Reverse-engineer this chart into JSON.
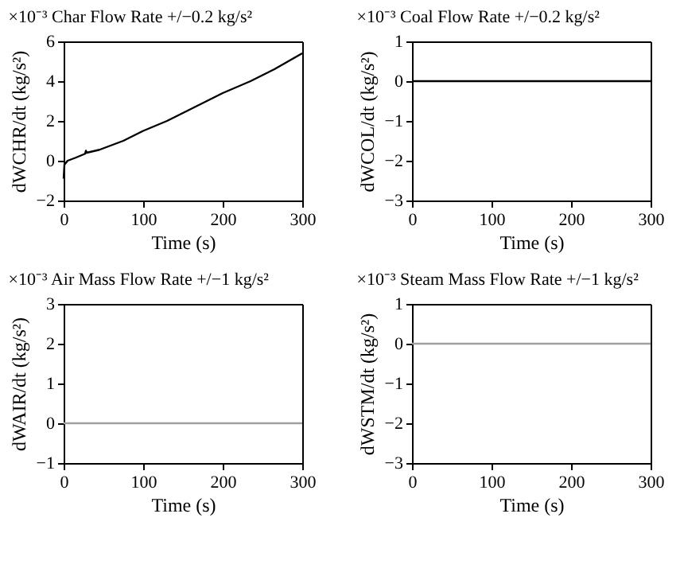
{
  "chart_data": [
    {
      "type": "line",
      "title": "×10⁻³  Char Flow Rate +/−0.2 kg/s²",
      "xlabel": "Time (s)",
      "ylabel": "dWCHR/dt (kg/s²)",
      "xlim": [
        0,
        300
      ],
      "xticks": [
        0,
        100,
        200,
        300
      ],
      "ylim": [
        -2,
        6
      ],
      "yticks": [
        -2,
        0,
        2,
        4,
        6
      ],
      "grid": false,
      "series": [
        {
          "color": "#000000",
          "x": [
            0,
            1,
            5,
            15,
            27,
            28,
            29,
            45,
            55,
            75,
            100,
            130,
            155,
            180,
            200,
            235,
            265,
            300
          ],
          "values": [
            -0.9,
            -0.2,
            0,
            0.15,
            0.35,
            0.5,
            0.4,
            0.55,
            0.7,
            1.0,
            1.5,
            2.0,
            2.5,
            3.0,
            3.4,
            4.0,
            4.6,
            5.4
          ]
        }
      ]
    },
    {
      "type": "line",
      "title": "×10⁻³  Coal Flow Rate +/−0.2 kg/s²",
      "xlabel": "Time (s)",
      "ylabel": "dWCOL/dt (kg/s²)",
      "xlim": [
        0,
        300
      ],
      "xticks": [
        0,
        100,
        200,
        300
      ],
      "ylim": [
        -3,
        1
      ],
      "yticks": [
        -3,
        -2,
        -1,
        0,
        1
      ],
      "grid": false,
      "series": [
        {
          "color": "#000000",
          "x": [
            0,
            300
          ],
          "values": [
            0,
            0
          ]
        }
      ]
    },
    {
      "type": "line",
      "title": "×10⁻³  Air Mass Flow Rate +/−1 kg/s²",
      "xlabel": "Time (s)",
      "ylabel": "dWAIR/dt (kg/s²)",
      "xlim": [
        0,
        300
      ],
      "xticks": [
        0,
        100,
        200,
        300
      ],
      "ylim": [
        -1,
        3
      ],
      "yticks": [
        -1,
        0,
        1,
        2,
        3
      ],
      "grid": false,
      "series": [
        {
          "color": "#a0a0a0",
          "x": [
            0,
            300
          ],
          "values": [
            0,
            0
          ]
        }
      ]
    },
    {
      "type": "line",
      "title": "×10⁻³  Steam Mass Flow Rate +/−1 kg/s²",
      "xlabel": "Time (s)",
      "ylabel": "dWSTM/dt (kg/s²)",
      "xlim": [
        0,
        300
      ],
      "xticks": [
        0,
        100,
        200,
        300
      ],
      "ylim": [
        -3,
        1
      ],
      "yticks": [
        -3,
        -2,
        -1,
        0,
        1
      ],
      "grid": false,
      "series": [
        {
          "color": "#a0a0a0",
          "x": [
            0,
            300
          ],
          "values": [
            0,
            0
          ]
        }
      ]
    }
  ]
}
